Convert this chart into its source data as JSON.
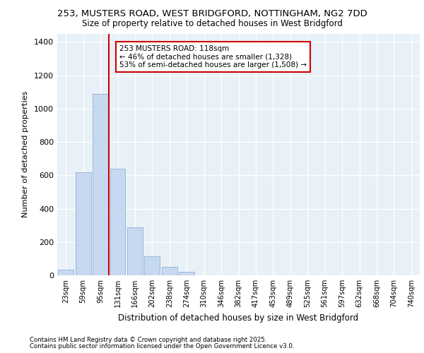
{
  "title_line1": "253, MUSTERS ROAD, WEST BRIDGFORD, NOTTINGHAM, NG2 7DD",
  "title_line2": "Size of property relative to detached houses in West Bridgford",
  "xlabel": "Distribution of detached houses by size in West Bridgford",
  "ylabel": "Number of detached properties",
  "categories": [
    "23sqm",
    "59sqm",
    "95sqm",
    "131sqm",
    "166sqm",
    "202sqm",
    "238sqm",
    "274sqm",
    "310sqm",
    "346sqm",
    "382sqm",
    "417sqm",
    "453sqm",
    "489sqm",
    "525sqm",
    "561sqm",
    "597sqm",
    "632sqm",
    "668sqm",
    "704sqm",
    "740sqm"
  ],
  "values": [
    35,
    620,
    1090,
    640,
    290,
    115,
    50,
    20,
    0,
    0,
    0,
    0,
    0,
    0,
    0,
    0,
    0,
    0,
    0,
    0,
    0
  ],
  "bar_color": "#c6d9f0",
  "bar_edge_color": "#9ab8d8",
  "background_color": "#e8f0f8",
  "grid_color": "#ffffff",
  "fig_background": "#ffffff",
  "vline_x": 3.0,
  "vline_color": "#cc0000",
  "annotation_text": "253 MUSTERS ROAD: 118sqm\n← 46% of detached houses are smaller (1,328)\n53% of semi-detached houses are larger (1,508) →",
  "annotation_box_facecolor": "#ffffff",
  "annotation_box_edgecolor": "#cc0000",
  "footer_line1": "Contains HM Land Registry data © Crown copyright and database right 2025.",
  "footer_line2": "Contains public sector information licensed under the Open Government Licence v3.0.",
  "ylim": [
    0,
    1450
  ],
  "yticks": [
    0,
    200,
    400,
    600,
    800,
    1000,
    1200,
    1400
  ]
}
